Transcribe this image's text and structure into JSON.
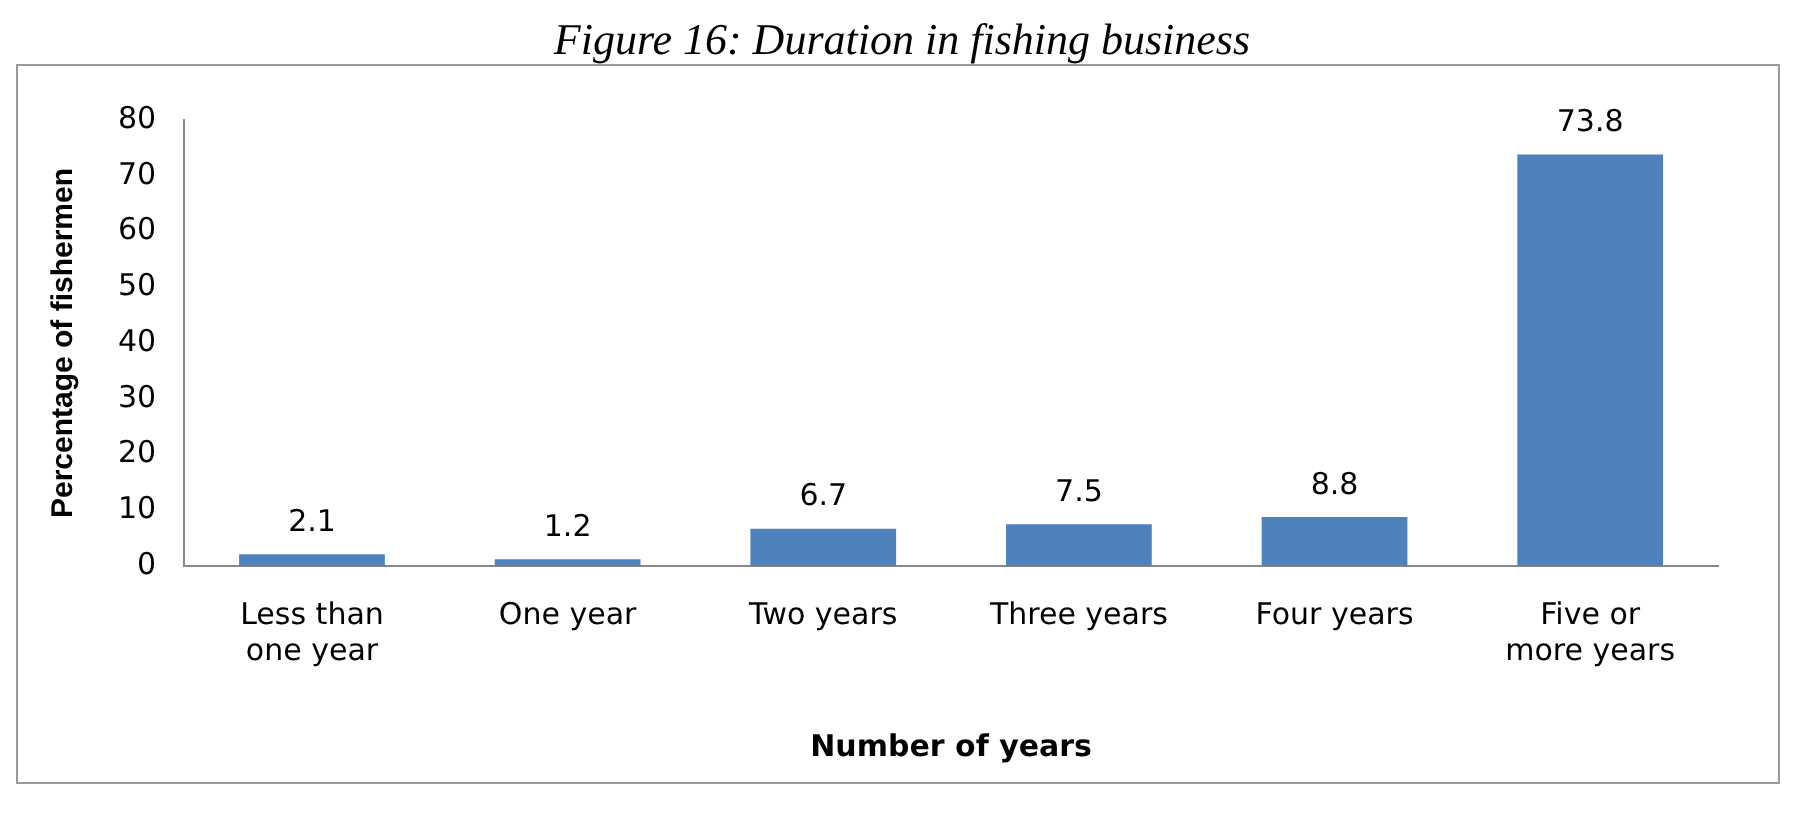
{
  "chart_data": {
    "type": "bar",
    "title": "Figure 16: Duration in fishing business",
    "xlabel": "Number of years",
    "ylabel": "Percentage of fishermen",
    "categories": [
      "Less than one year",
      "One year",
      "Two years",
      "Three years",
      "Four years",
      "Five or more years"
    ],
    "values": [
      2.1,
      1.2,
      6.7,
      7.5,
      8.8,
      73.8
    ],
    "color": "#4f81bd",
    "ylim": [
      0,
      80
    ],
    "yticks": [
      0,
      10,
      20,
      30,
      40,
      50,
      60,
      70,
      80
    ],
    "grid": false,
    "data_labels": true,
    "legend": false
  }
}
